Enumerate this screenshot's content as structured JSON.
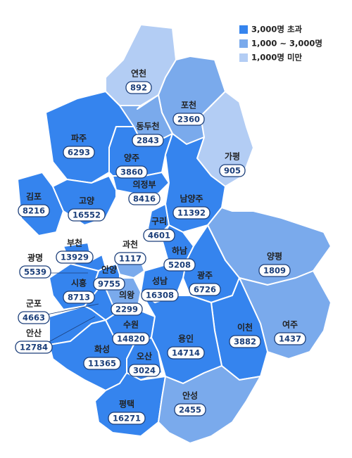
{
  "legend": [
    {
      "label": "3,000명 초과",
      "color": "#3584ee"
    },
    {
      "label": "1,000 ~ 3,000명",
      "color": "#7aaaec"
    },
    {
      "label": "1,000명 미만",
      "color": "#b3cdf4"
    }
  ],
  "regions": [
    {
      "name": "연천",
      "value": 892,
      "color": "#b3cdf4"
    },
    {
      "name": "포천",
      "value": 2360,
      "color": "#7aaaec"
    },
    {
      "name": "가평",
      "value": 905,
      "color": "#b3cdf4"
    },
    {
      "name": "동두천",
      "value": 2843,
      "color": "#7aaaec"
    },
    {
      "name": "파주",
      "value": 6293,
      "color": "#3584ee"
    },
    {
      "name": "양주",
      "value": 3860,
      "color": "#3584ee"
    },
    {
      "name": "의정부",
      "value": 8416,
      "color": "#3584ee"
    },
    {
      "name": "남양주",
      "value": 11392,
      "color": "#3584ee"
    },
    {
      "name": "김포",
      "value": 8216,
      "color": "#3584ee"
    },
    {
      "name": "고양",
      "value": 16552,
      "color": "#3584ee"
    },
    {
      "name": "구리",
      "value": 4601,
      "color": "#3584ee"
    },
    {
      "name": "하남",
      "value": 5208,
      "color": "#3584ee"
    },
    {
      "name": "양평",
      "value": 1809,
      "color": "#7aaaec"
    },
    {
      "name": "광주",
      "value": 6726,
      "color": "#3584ee"
    },
    {
      "name": "성남",
      "value": 16308,
      "color": "#3584ee"
    },
    {
      "name": "과천",
      "value": 1117,
      "color": "#7aaaec"
    },
    {
      "name": "부천",
      "value": 13929,
      "color": "#3584ee"
    },
    {
      "name": "광명",
      "value": 5539,
      "color": "#3584ee"
    },
    {
      "name": "안양",
      "value": 9755,
      "color": "#3584ee"
    },
    {
      "name": "시흥",
      "value": 8713,
      "color": "#3584ee"
    },
    {
      "name": "의왕",
      "value": 2299,
      "color": "#7aaaec"
    },
    {
      "name": "군포",
      "value": 4663,
      "color": "#3584ee"
    },
    {
      "name": "여주",
      "value": 1437,
      "color": "#7aaaec"
    },
    {
      "name": "이천",
      "value": 3882,
      "color": "#3584ee"
    },
    {
      "name": "수원",
      "value": 14820,
      "color": "#3584ee"
    },
    {
      "name": "용인",
      "value": 14714,
      "color": "#3584ee"
    },
    {
      "name": "안산",
      "value": 12784,
      "color": "#3584ee"
    },
    {
      "name": "화성",
      "value": 11365,
      "color": "#3584ee"
    },
    {
      "name": "오산",
      "value": 3024,
      "color": "#3584ee"
    },
    {
      "name": "평택",
      "value": 16271,
      "color": "#3584ee"
    },
    {
      "name": "안성",
      "value": 2455,
      "color": "#7aaaec"
    }
  ]
}
